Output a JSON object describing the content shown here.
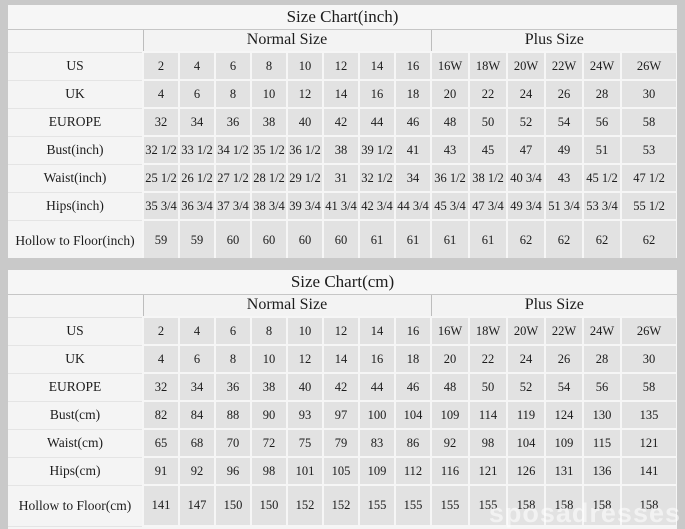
{
  "watermark": "sposadresses",
  "colors": {
    "page_background": "#c9c9c9",
    "table_background": "#f5f5f5",
    "data_cell_background": "#e2e2e2",
    "text": "#1c1c1c"
  },
  "tables": [
    {
      "title": "Size Chart(inch)",
      "sections": {
        "normal": "Normal Size",
        "plus": "Plus Size"
      },
      "rows": [
        {
          "label": "US",
          "normal": [
            "2",
            "4",
            "6",
            "8",
            "10",
            "12",
            "14",
            "16"
          ],
          "plus": [
            "16W",
            "18W",
            "20W",
            "22W",
            "24W",
            "26W"
          ]
        },
        {
          "label": "UK",
          "normal": [
            "4",
            "6",
            "8",
            "10",
            "12",
            "14",
            "16",
            "18"
          ],
          "plus": [
            "20",
            "22",
            "24",
            "26",
            "28",
            "30"
          ]
        },
        {
          "label": "EUROPE",
          "normal": [
            "32",
            "34",
            "36",
            "38",
            "40",
            "42",
            "44",
            "46"
          ],
          "plus": [
            "48",
            "50",
            "52",
            "54",
            "56",
            "58"
          ]
        },
        {
          "label": "Bust(inch)",
          "normal": [
            "32 1/2",
            "33 1/2",
            "34 1/2",
            "35 1/2",
            "36 1/2",
            "38",
            "39 1/2",
            "41"
          ],
          "plus": [
            "43",
            "45",
            "47",
            "49",
            "51",
            "53"
          ]
        },
        {
          "label": "Waist(inch)",
          "normal": [
            "25 1/2",
            "26 1/2",
            "27 1/2",
            "28 1/2",
            "29 1/2",
            "31",
            "32 1/2",
            "34"
          ],
          "plus": [
            "36 1/2",
            "38 1/2",
            "40 3/4",
            "43",
            "45 1/2",
            "47 1/2"
          ]
        },
        {
          "label": "Hips(inch)",
          "normal": [
            "35 3/4",
            "36 3/4",
            "37 3/4",
            "38 3/4",
            "39 3/4",
            "41 3/4",
            "42 3/4",
            "44 3/4"
          ],
          "plus": [
            "45 3/4",
            "47 3/4",
            "49 3/4",
            "51 3/4",
            "53 3/4",
            "55 1/2"
          ]
        },
        {
          "label": "Hollow to Floor(inch)",
          "normal": [
            "59",
            "59",
            "60",
            "60",
            "60",
            "60",
            "61",
            "61"
          ],
          "plus": [
            "61",
            "61",
            "62",
            "62",
            "62",
            "62"
          ]
        }
      ]
    },
    {
      "title": "Size Chart(cm)",
      "sections": {
        "normal": "Normal Size",
        "plus": "Plus Size"
      },
      "rows": [
        {
          "label": "US",
          "normal": [
            "2",
            "4",
            "6",
            "8",
            "10",
            "12",
            "14",
            "16"
          ],
          "plus": [
            "16W",
            "18W",
            "20W",
            "22W",
            "24W",
            "26W"
          ]
        },
        {
          "label": "UK",
          "normal": [
            "4",
            "6",
            "8",
            "10",
            "12",
            "14",
            "16",
            "18"
          ],
          "plus": [
            "20",
            "22",
            "24",
            "26",
            "28",
            "30"
          ]
        },
        {
          "label": "EUROPE",
          "normal": [
            "32",
            "34",
            "36",
            "38",
            "40",
            "42",
            "44",
            "46"
          ],
          "plus": [
            "48",
            "50",
            "52",
            "54",
            "56",
            "58"
          ]
        },
        {
          "label": "Bust(cm)",
          "normal": [
            "82",
            "84",
            "88",
            "90",
            "93",
            "97",
            "100",
            "104"
          ],
          "plus": [
            "109",
            "114",
            "119",
            "124",
            "130",
            "135"
          ]
        },
        {
          "label": "Waist(cm)",
          "normal": [
            "65",
            "68",
            "70",
            "72",
            "75",
            "79",
            "83",
            "86"
          ],
          "plus": [
            "92",
            "98",
            "104",
            "109",
            "115",
            "121"
          ]
        },
        {
          "label": "Hips(cm)",
          "normal": [
            "91",
            "92",
            "96",
            "98",
            "101",
            "105",
            "109",
            "112"
          ],
          "plus": [
            "116",
            "121",
            "126",
            "131",
            "136",
            "141"
          ]
        },
        {
          "label": "Hollow to Floor(cm)",
          "normal": [
            "141",
            "147",
            "150",
            "150",
            "152",
            "152",
            "155",
            "155"
          ],
          "plus": [
            "155",
            "155",
            "158",
            "158",
            "158",
            "158"
          ]
        }
      ]
    }
  ]
}
